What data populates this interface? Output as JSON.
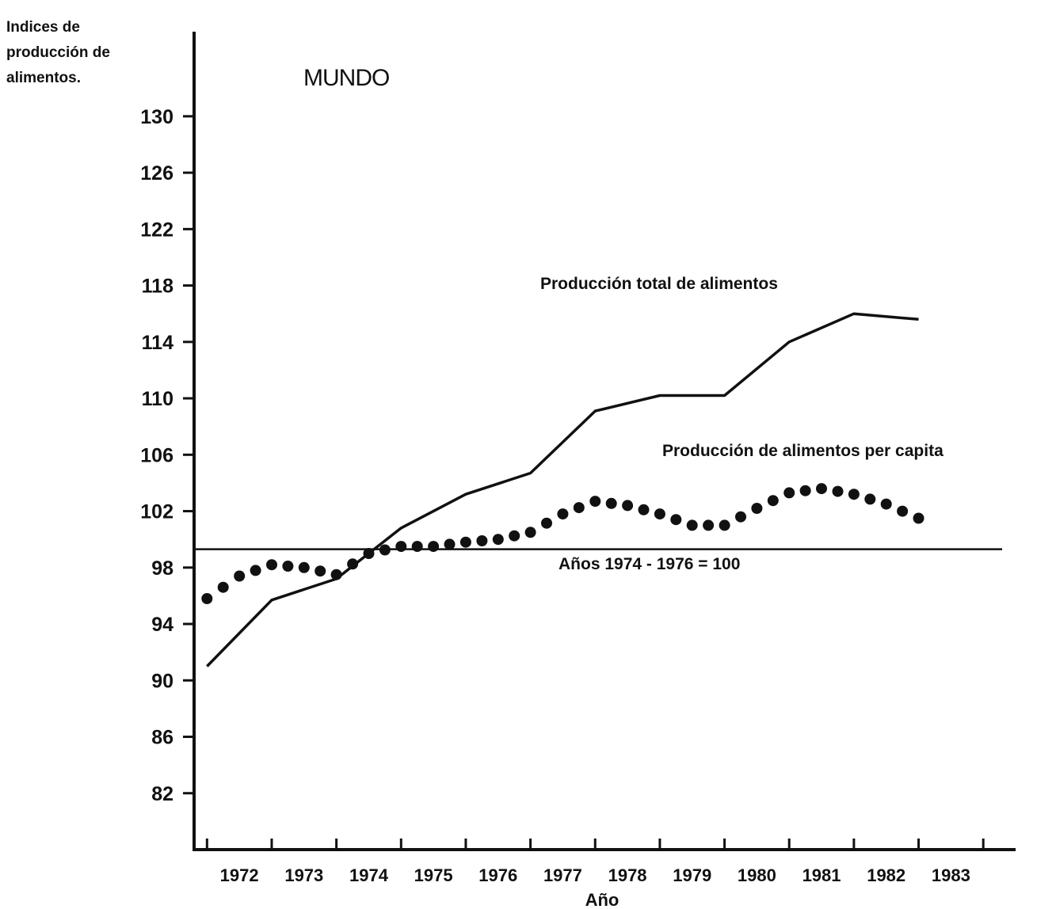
{
  "chart_data": {
    "type": "line",
    "title": "MUNDO",
    "ylabel": [
      "Indices de",
      "producción de",
      "alimentos."
    ],
    "xlabel": "Año",
    "ylim": [
      78,
      136
    ],
    "xlim": [
      1971.3,
      1984.0
    ],
    "yticks": [
      82,
      86,
      90,
      94,
      98,
      102,
      106,
      110,
      114,
      118,
      122,
      126,
      130
    ],
    "xticks": [
      1972,
      1973,
      1974,
      1975,
      1976,
      1977,
      1978,
      1979,
      1980,
      1981,
      1982,
      1983
    ],
    "x_tick_labels": [
      "1972",
      "1973",
      "1974",
      "1975",
      "1976",
      "1977",
      "1978",
      "1979",
      "1980",
      "1981",
      "1982",
      "1983"
    ],
    "reference_line": {
      "y": 99.3,
      "label": "Años 1974 - 1976 = 100"
    },
    "series": [
      {
        "name": "Producción total de alimentos",
        "style": "solid",
        "color": "#111111",
        "x": [
          1971.5,
          1972.5,
          1973.5,
          1974.5,
          1975.5,
          1976.5,
          1977.5,
          1978.5,
          1979.5,
          1980.5,
          1981.5,
          1982.5
        ],
        "y": [
          91.0,
          95.7,
          97.2,
          100.8,
          103.2,
          104.7,
          109.1,
          110.2,
          110.2,
          114.0,
          116.0,
          115.6
        ]
      },
      {
        "name": "Producción de alimentos per capita",
        "style": "dotted",
        "color": "#111111",
        "x": [
          1971.5,
          1972.0,
          1972.5,
          1973.0,
          1973.5,
          1974.0,
          1974.5,
          1975.0,
          1975.5,
          1976.0,
          1976.5,
          1977.0,
          1977.5,
          1978.0,
          1978.5,
          1979.0,
          1979.5,
          1980.0,
          1980.5,
          1981.0,
          1981.5,
          1982.0,
          1982.5
        ],
        "y": [
          95.8,
          97.4,
          98.2,
          98.0,
          97.5,
          99.0,
          99.5,
          99.5,
          99.8,
          100.0,
          100.5,
          101.8,
          102.7,
          102.4,
          101.8,
          101.0,
          101.0,
          102.2,
          103.3,
          103.6,
          103.2,
          102.5,
          101.5
        ]
      }
    ],
    "annotations": [
      {
        "text": "Producción total de alimentos",
        "anchor_series": 0
      },
      {
        "text": "Producción de alimentos per capita",
        "anchor_series": 1
      }
    ]
  }
}
